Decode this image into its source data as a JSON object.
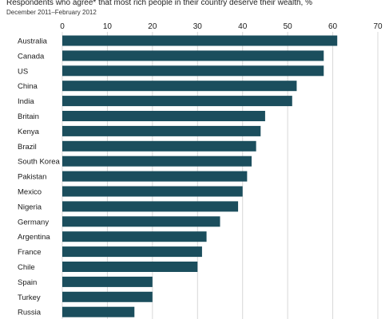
{
  "header": {
    "title": "Respondents who agree* that most rich people in their country deserve their wealth, %",
    "subtitle": "December 2011–February 2012"
  },
  "colors": {
    "bar": "#1b4e5d",
    "grid": "#d8d8d8",
    "text": "#1a1a1a"
  },
  "chart_data": {
    "type": "bar",
    "orientation": "horizontal",
    "title": "Respondents who agree* that most rich people in their country deserve their wealth, %",
    "subtitle": "December 2011–February 2012",
    "categories": [
      "Australia",
      "Canada",
      "US",
      "China",
      "India",
      "Britain",
      "Kenya",
      "Brazil",
      "South Korea",
      "Pakistan",
      "Mexico",
      "Nigeria",
      "Germany",
      "Argentina",
      "France",
      "Chile",
      "Spain",
      "Turkey",
      "Russia"
    ],
    "values": [
      61,
      58,
      58,
      52,
      51,
      45,
      44,
      43,
      42,
      41,
      40,
      39,
      35,
      32,
      31,
      30,
      20,
      20,
      16
    ],
    "xlim": [
      0,
      70
    ],
    "xticks": [
      0,
      10,
      20,
      30,
      40,
      50,
      60,
      70
    ],
    "tick_position": "top",
    "grid": true,
    "legend": "none"
  }
}
